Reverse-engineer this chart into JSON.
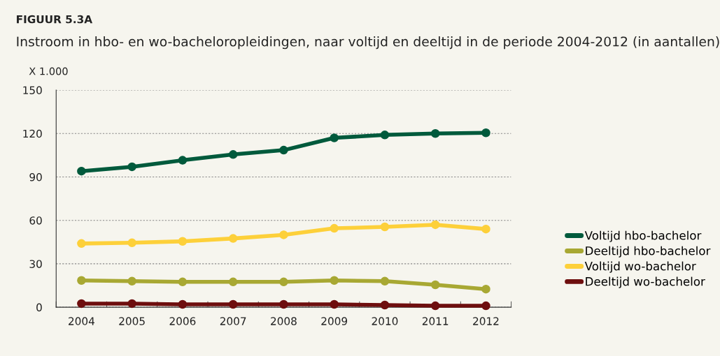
{
  "chart_data": {
    "type": "line",
    "title": "FIGUUR 5.3A",
    "subtitle": "Instroom in hbo- en wo-bacheloropleidingen, naar voltijd en deeltijd in de periode 2004-2012 (in aantallen)",
    "ylabel": "X 1.000",
    "categories": [
      "2004",
      "2005",
      "2006",
      "2007",
      "2008",
      "2009",
      "2010",
      "2011",
      "2012"
    ],
    "series": [
      {
        "name": "Voltijd hbo-bachelor",
        "color": "#005a3c",
        "values": [
          94,
          97,
          101.5,
          105.5,
          108.5,
          117,
          119,
          120,
          120.5
        ]
      },
      {
        "name": "Deeltijd hbo-bachelor",
        "color": "#a8a833",
        "values": [
          18.5,
          18,
          17.5,
          17.5,
          17.5,
          18.5,
          18,
          15.5,
          12.5
        ]
      },
      {
        "name": "Voltijd wo-bachelor",
        "color": "#fdd03a",
        "values": [
          44,
          44.5,
          45.5,
          47.5,
          50,
          54.5,
          55.5,
          57,
          54
        ]
      },
      {
        "name": "Deeltijd wo-bachelor",
        "color": "#6e0e0e",
        "values": [
          2.5,
          2.5,
          2,
          2,
          2,
          2,
          1.5,
          1,
          1
        ]
      }
    ],
    "ylim": [
      0,
      150
    ],
    "yticks": [
      0,
      30,
      60,
      90,
      120,
      150
    ],
    "grid": "y",
    "legend": "right",
    "marker": "circle",
    "line_style": "solid"
  }
}
